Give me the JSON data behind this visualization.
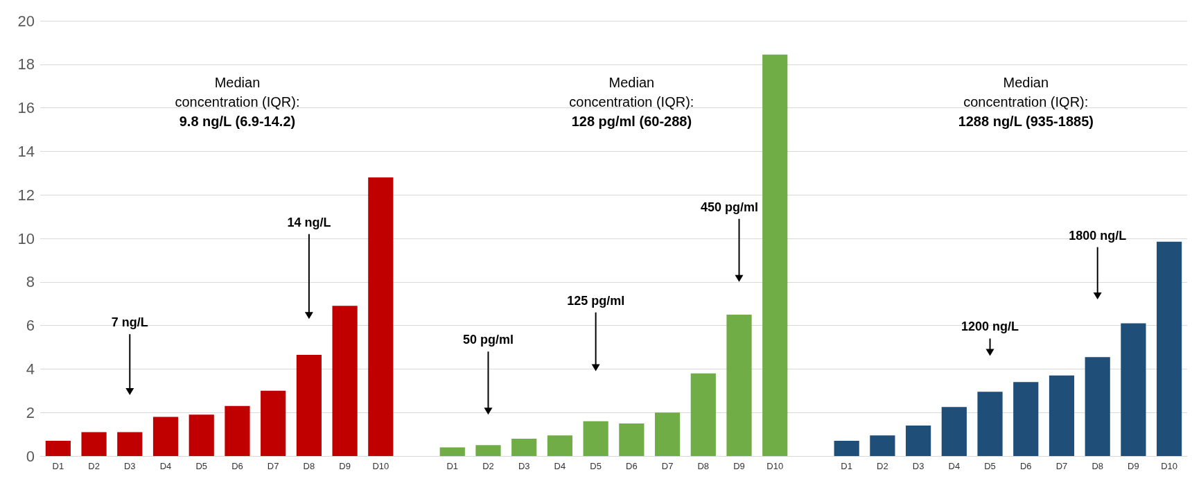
{
  "chart_data": {
    "type": "bar",
    "categories": [
      "D1",
      "D2",
      "D3",
      "D4",
      "D5",
      "D6",
      "D7",
      "D8",
      "D9",
      "D10",
      null,
      "D1",
      "D2",
      "D3",
      "D4",
      "D5",
      "D6",
      "D7",
      "D8",
      "D9",
      "D10",
      null,
      "D1",
      "D2",
      "D3",
      "D4",
      "D5",
      "D6",
      "D7",
      "D8",
      "D9",
      "D10"
    ],
    "series": [
      {
        "color": "#c00000",
        "values": [
          0.7,
          1.1,
          1.1,
          1.8,
          1.9,
          2.3,
          3.0,
          4.65,
          6.9,
          12.8,
          null,
          null,
          null,
          null,
          null,
          null,
          null,
          null,
          null,
          null,
          null,
          null,
          null,
          null,
          null,
          null,
          null,
          null,
          null,
          null,
          null,
          null
        ]
      },
      {
        "color": "#70ad47",
        "values": [
          null,
          null,
          null,
          null,
          null,
          null,
          null,
          null,
          null,
          null,
          null,
          0.4,
          0.5,
          0.8,
          0.95,
          1.6,
          1.5,
          2.0,
          3.8,
          6.5,
          18.45,
          null,
          null,
          null,
          null,
          null,
          null,
          null,
          null,
          null,
          null,
          null
        ]
      },
      {
        "color": "#1f4e79",
        "values": [
          null,
          null,
          null,
          null,
          null,
          null,
          null,
          null,
          null,
          null,
          null,
          null,
          null,
          null,
          null,
          null,
          null,
          null,
          null,
          null,
          null,
          null,
          0.7,
          0.95,
          1.4,
          2.25,
          2.95,
          3.4,
          3.7,
          4.55,
          6.1,
          9.85
        ]
      }
    ],
    "ylim": [
      0,
      20
    ],
    "yticks": [
      0,
      2,
      4,
      6,
      8,
      10,
      12,
      14,
      16,
      18,
      20
    ],
    "grid": "y",
    "annotations": [
      "Median\nconcentration (IQR):\n9.8 ng/L (6.9-14.2)",
      "Median\nconcentration (IQR):\n128 pg/ml (60-288)",
      "Median\nconcentration (IQR):\n1288 ng/L (935-1885)",
      "7 ng/L",
      "14 ng/L",
      "50 pg/ml",
      "125 pg/ml",
      "450 pg/ml",
      "1200 ng/L",
      "1800 ng/L"
    ]
  }
}
